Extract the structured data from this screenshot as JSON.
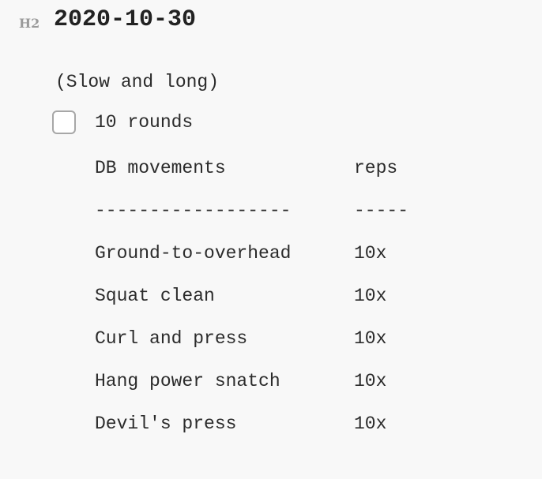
{
  "heading": {
    "marker": "H2",
    "title": "2020-10-30"
  },
  "note": "(Slow and long)",
  "task": {
    "checked": false,
    "label": "10 rounds"
  },
  "table": {
    "header": {
      "movement": "DB movements",
      "reps": "reps"
    },
    "separator": {
      "movement": "------------------",
      "reps": "-----"
    },
    "rows": [
      {
        "movement": "Ground-to-overhead",
        "reps": "10x"
      },
      {
        "movement": "Squat clean",
        "reps": "10x"
      },
      {
        "movement": "Curl and press",
        "reps": "10x"
      },
      {
        "movement": "Hang power snatch",
        "reps": "10x"
      },
      {
        "movement": "Devil's press",
        "reps": "10x"
      }
    ]
  }
}
